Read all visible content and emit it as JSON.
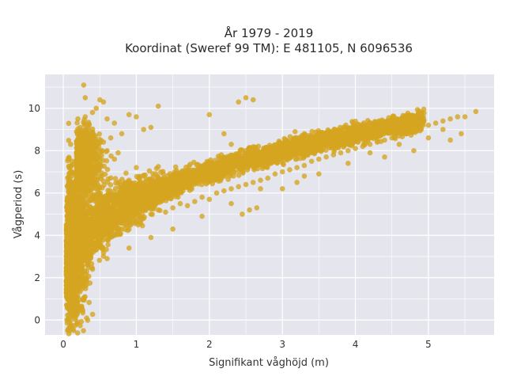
{
  "chart_data": {
    "type": "scatter",
    "title_lines": [
      "År 1979 - 2019",
      "Koordinat (Sweref 99 TM): E 481105, N 6096536"
    ],
    "xlabel": "Signifikant våghöjd (m)",
    "ylabel": "Vågperiod (s)",
    "xlim": [
      -0.25,
      5.9
    ],
    "ylim": [
      -0.7,
      11.6
    ],
    "x_ticks": [
      0,
      1,
      2,
      3,
      4,
      5
    ],
    "y_ticks": [
      0,
      2,
      4,
      6,
      8,
      10
    ],
    "grid": true,
    "legend": "none",
    "colors": {
      "point": "#d4a520",
      "plot_bg": "#e5e5ee",
      "grid": "#ffffff"
    },
    "series": [
      {
        "points": [
          [
            0.05,
            0.0
          ],
          [
            0.07,
            0.0
          ],
          [
            0.1,
            0.0
          ],
          [
            0.06,
            1.4
          ],
          [
            0.1,
            1.2
          ],
          [
            0.12,
            1.7
          ],
          [
            0.08,
            2.2
          ],
          [
            0.15,
            1.9
          ],
          [
            0.2,
            2.3
          ],
          [
            0.09,
            2.6
          ],
          [
            0.14,
            2.9
          ],
          [
            0.25,
            2.6
          ],
          [
            0.3,
            2.9
          ],
          [
            0.1,
            3.2
          ],
          [
            0.2,
            3.4
          ],
          [
            0.35,
            3.1
          ],
          [
            0.4,
            3.3
          ],
          [
            0.12,
            3.7
          ],
          [
            0.22,
            3.9
          ],
          [
            0.5,
            3.5
          ],
          [
            0.6,
            3.8
          ],
          [
            0.18,
            4.2
          ],
          [
            0.3,
            4.4
          ],
          [
            0.7,
            4.0
          ],
          [
            0.8,
            4.3
          ],
          [
            0.25,
            4.7
          ],
          [
            0.45,
            4.8
          ],
          [
            0.9,
            4.5
          ],
          [
            1.0,
            4.6
          ],
          [
            1.1,
            4.8
          ],
          [
            0.35,
            5.1
          ],
          [
            0.6,
            5.2
          ],
          [
            1.2,
            5.0
          ],
          [
            1.3,
            5.2
          ],
          [
            1.4,
            5.1
          ],
          [
            0.5,
            5.5
          ],
          [
            0.8,
            5.6
          ],
          [
            1.5,
            5.3
          ],
          [
            1.6,
            5.5
          ],
          [
            1.7,
            5.4
          ],
          [
            1.0,
            5.8
          ],
          [
            1.2,
            6.0
          ],
          [
            1.8,
            5.6
          ],
          [
            1.9,
            5.8
          ],
          [
            2.0,
            5.7
          ],
          [
            1.5,
            6.2
          ],
          [
            2.1,
            6.0
          ],
          [
            2.2,
            6.1
          ],
          [
            2.3,
            6.2
          ],
          [
            2.4,
            6.3
          ],
          [
            2.5,
            6.4
          ],
          [
            2.6,
            6.5
          ],
          [
            2.7,
            6.6
          ],
          [
            2.8,
            6.7
          ],
          [
            2.9,
            6.9
          ],
          [
            3.0,
            7.0
          ],
          [
            3.1,
            7.1
          ],
          [
            3.2,
            7.2
          ],
          [
            3.3,
            7.3
          ],
          [
            3.4,
            7.5
          ],
          [
            3.5,
            7.6
          ],
          [
            3.6,
            7.7
          ],
          [
            3.7,
            7.8
          ],
          [
            3.8,
            7.9
          ],
          [
            3.9,
            8.0
          ],
          [
            4.0,
            8.1
          ],
          [
            4.1,
            8.2
          ],
          [
            4.2,
            8.3
          ],
          [
            4.3,
            8.4
          ],
          [
            4.4,
            8.5
          ],
          [
            4.5,
            8.6
          ],
          [
            4.6,
            8.7
          ],
          [
            4.7,
            8.8
          ],
          [
            4.8,
            8.9
          ],
          [
            4.9,
            9.0
          ],
          [
            5.0,
            9.2
          ],
          [
            5.1,
            9.3
          ],
          [
            5.2,
            9.4
          ],
          [
            5.3,
            9.5
          ],
          [
            5.4,
            9.6
          ],
          [
            5.5,
            9.6
          ],
          [
            5.65,
            9.85
          ],
          [
            5.45,
            8.8
          ],
          [
            5.3,
            8.5
          ],
          [
            4.8,
            8.0
          ],
          [
            3.9,
            7.4
          ],
          [
            3.3,
            6.8
          ],
          [
            2.7,
            6.2
          ],
          [
            2.3,
            5.5
          ],
          [
            1.9,
            4.9
          ],
          [
            1.5,
            4.3
          ],
          [
            1.2,
            3.9
          ],
          [
            0.9,
            3.4
          ],
          [
            0.6,
            2.9
          ],
          [
            0.4,
            2.4
          ],
          [
            0.25,
            2.1
          ],
          [
            0.15,
            1.4
          ],
          [
            0.2,
            8.2
          ],
          [
            0.25,
            8.8
          ],
          [
            0.3,
            9.6
          ],
          [
            0.35,
            9.2
          ],
          [
            0.4,
            9.8
          ],
          [
            0.45,
            10.0
          ],
          [
            0.3,
            10.5
          ],
          [
            0.28,
            11.1
          ],
          [
            0.5,
            10.4
          ],
          [
            0.55,
            10.3
          ],
          [
            0.6,
            9.5
          ],
          [
            0.7,
            9.3
          ],
          [
            0.8,
            8.8
          ],
          [
            0.9,
            9.7
          ],
          [
            1.0,
            9.6
          ],
          [
            1.1,
            9.0
          ],
          [
            1.3,
            10.1
          ],
          [
            1.2,
            9.1
          ],
          [
            0.6,
            8.0
          ],
          [
            0.7,
            7.6
          ],
          [
            0.5,
            7.2
          ],
          [
            0.4,
            6.8
          ],
          [
            0.3,
            7.0
          ],
          [
            0.2,
            6.2
          ],
          [
            0.15,
            5.6
          ],
          [
            0.12,
            7.5
          ],
          [
            0.1,
            8.3
          ],
          [
            0.35,
            8.0
          ],
          [
            0.45,
            7.8
          ],
          [
            0.55,
            8.4
          ],
          [
            0.65,
            8.6
          ],
          [
            0.75,
            7.9
          ],
          [
            2.0,
            9.7
          ],
          [
            2.4,
            10.3
          ],
          [
            2.5,
            10.5
          ],
          [
            2.6,
            10.4
          ],
          [
            2.3,
            8.3
          ],
          [
            2.5,
            8.0
          ],
          [
            2.2,
            8.8
          ],
          [
            1.0,
            7.2
          ],
          [
            1.1,
            6.8
          ],
          [
            0.9,
            6.6
          ],
          [
            2.45,
            5.0
          ],
          [
            2.55,
            5.2
          ],
          [
            2.65,
            5.3
          ],
          [
            3.0,
            6.2
          ],
          [
            3.2,
            6.5
          ],
          [
            3.5,
            6.9
          ],
          [
            4.2,
            7.9
          ],
          [
            4.6,
            8.3
          ],
          [
            5.0,
            8.6
          ],
          [
            5.2,
            9.0
          ],
          [
            4.4,
            7.7
          ]
        ]
      }
    ]
  }
}
